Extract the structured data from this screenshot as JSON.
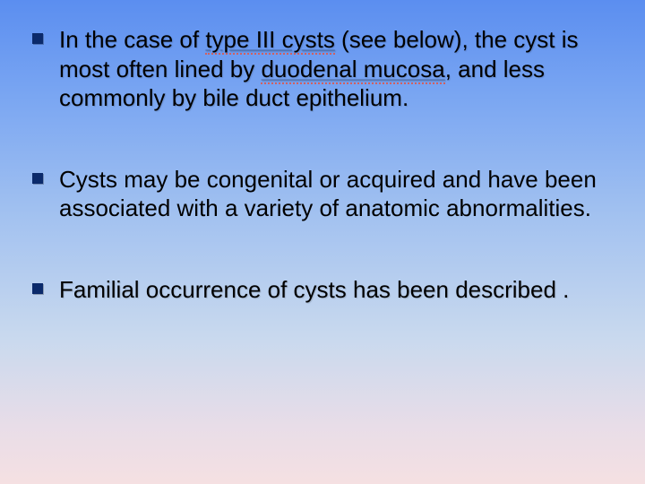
{
  "slide": {
    "background_gradient": [
      "#5b8ef0",
      "#7aa6f2",
      "#a3c2f0",
      "#c9d9ee",
      "#e8dde8",
      "#f5e0e2"
    ],
    "bullet_marker_color": "#0b2a6b",
    "text_color": "#000000",
    "font_family": "Arial",
    "font_size_pt": 20,
    "bullets": [
      {
        "segments": [
          {
            "t": "In the case of "
          },
          {
            "t": "type III cysts",
            "style": "ul-red"
          },
          {
            "t": " (see below), the cyst is most often lined by "
          },
          {
            "t": "duodenal mucosa",
            "style": "ul-red"
          },
          {
            "t": ", and less commonly by bile duct epithelium."
          }
        ],
        "text_shadow": true
      },
      {
        "segments": [
          {
            "t": "Cysts may be congenital or acquired  and have been associated with a variety of anatomic abnormalities."
          }
        ],
        "text_shadow": false
      },
      {
        "segments": [
          {
            "t": "Familial occurrence of cysts has been described ."
          }
        ],
        "text_shadow": true
      }
    ]
  }
}
